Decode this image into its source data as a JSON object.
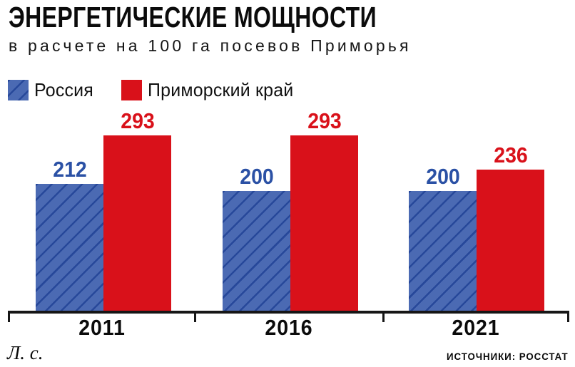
{
  "header": {
    "title": "ЭНЕРГЕТИЧЕСКИЕ МОЩНОСТИ",
    "subtitle": "в расчете на 100 га посевов Приморья"
  },
  "legend": [
    {
      "id": "russia",
      "label": "Россия",
      "color": "#4b6ab3",
      "pattern": "diagonal-hatch"
    },
    {
      "id": "primorsky-krai",
      "label": "Приморский край",
      "color": "#d9111a",
      "pattern": "solid"
    }
  ],
  "chart_data": {
    "type": "bar",
    "title": "ЭНЕРГЕТИЧЕСКИЕ МОЩНОСТИ",
    "subtitle": "в расчете на 100 га посевов Приморья",
    "unit": "л. с.",
    "categories": [
      "2011",
      "2016",
      "2021"
    ],
    "series": [
      {
        "id": "russia",
        "name": "Россия",
        "color": "#4b6ab3",
        "label_color": "#2b51a5",
        "values": [
          212,
          200,
          200
        ]
      },
      {
        "id": "primorsky-krai",
        "name": "Приморский край",
        "color": "#d9111a",
        "label_color": "#d9111a",
        "values": [
          293,
          293,
          236
        ]
      }
    ],
    "ylim": [
      0,
      320
    ],
    "value_labels": true,
    "grid": false,
    "legend_position": "top-left"
  },
  "footer": {
    "unit_label": "Л. с.",
    "source_label": "ИСТОЧНИКИ: РОССТАТ"
  },
  "colors": {
    "russia_fill": "#4b6ab3",
    "russia_hatch": "#27489a",
    "primorye_fill": "#d9111a",
    "russia_value_text": "#2b51a5",
    "primorye_value_text": "#d9111a",
    "axis": "#161616",
    "text": "#0b0b0b",
    "background": "#ffffff"
  }
}
